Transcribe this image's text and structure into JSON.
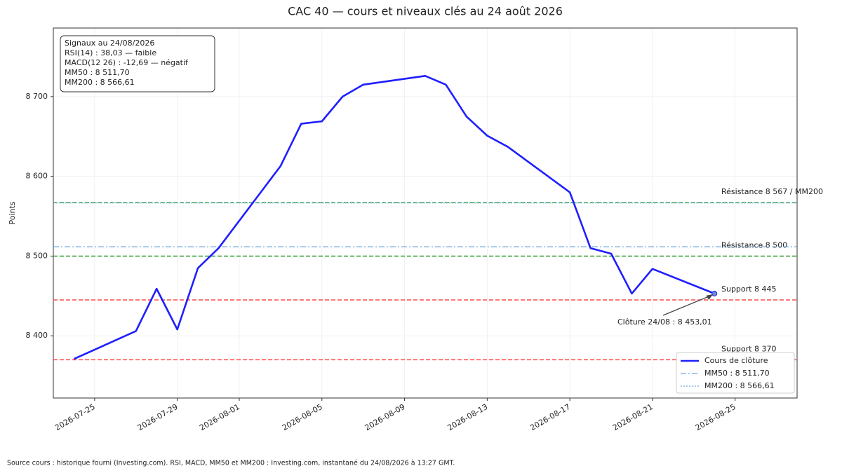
{
  "chart_data": {
    "type": "line",
    "title": "CAC 40 — cours et niveaux clés au 24 août 2026",
    "ylabel": "Points",
    "x": [
      "2026-07-24",
      "2026-07-27",
      "2026-07-28",
      "2026-07-29",
      "2026-07-30",
      "2026-07-31",
      "2026-08-03",
      "2026-08-04",
      "2026-08-05",
      "2026-08-06",
      "2026-08-07",
      "2026-08-10",
      "2026-08-11",
      "2026-08-12",
      "2026-08-13",
      "2026-08-14",
      "2026-08-17",
      "2026-08-18",
      "2026-08-19",
      "2026-08-20",
      "2026-08-21",
      "2026-08-24"
    ],
    "series": [
      {
        "name": "Cours de clôture",
        "color": "#1f1fff",
        "values": [
          8371,
          8406,
          8459,
          8408,
          8485,
          8510,
          8613,
          8666,
          8669,
          8700,
          8715,
          8726,
          8715,
          8675,
          8651,
          8637,
          8580,
          8510,
          8503,
          8453,
          8484,
          8453.01
        ]
      }
    ],
    "averages": [
      {
        "name": "MM50 : 8 511,70",
        "value": 8511.7,
        "color": "#6fa8dc",
        "style": "dashdot"
      },
      {
        "name": "MM200 : 8 566,61",
        "value": 8566.61,
        "color": "#6fa8dc",
        "style": "dotted"
      }
    ],
    "levels": [
      {
        "label": "Résistance 8 567 / MM200",
        "value": 8567,
        "color": "#2ca02c"
      },
      {
        "label": "Résistance 8 500",
        "value": 8500,
        "color": "#2ca02c"
      },
      {
        "label": "Support 8 445",
        "value": 8445,
        "color": "#ff4d4d"
      },
      {
        "label": "Support 8 370",
        "value": 8370,
        "color": "#ff4d4d"
      }
    ],
    "annotation": {
      "text": "Clôture 24/08 : 8 453,01",
      "x": "2026-08-24",
      "value": 8453.01
    },
    "info_box": [
      "Signaux au 24/08/2026",
      "RSI(14) : 38,03 — faible",
      "MACD(12 26) : -12,69 — négatif",
      "MM50 : 8 511,70",
      "MM200 : 8 566,61"
    ],
    "xlim": [
      "2026-07-23",
      "2026-08-28"
    ],
    "xticks": [
      "2026-07-25",
      "2026-07-29",
      "2026-08-01",
      "2026-08-05",
      "2026-08-09",
      "2026-08-13",
      "2026-08-17",
      "2026-08-21",
      "2026-08-25"
    ],
    "ylim": [
      8322,
      8786
    ],
    "yticks": [
      {
        "value": 8400,
        "label": "8 400"
      },
      {
        "value": 8500,
        "label": "8 500"
      },
      {
        "value": 8600,
        "label": "8 600"
      },
      {
        "value": 8700,
        "label": "8 700"
      }
    ],
    "grid": true,
    "legend": "lower right",
    "source": "Source cours : historique fourni (Investing.com). RSI, MACD, MM50 et MM200 : Investing.com, instantané du 24/08/2026 à 13:27 GMT."
  }
}
